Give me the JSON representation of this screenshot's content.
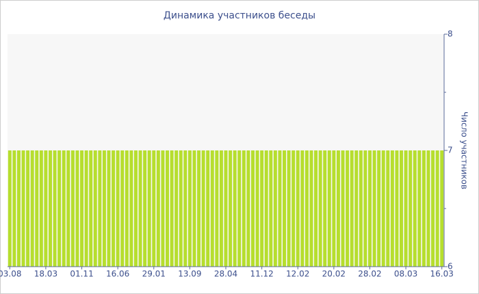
{
  "chart_data": {
    "type": "bar",
    "title": "Динамика участников беседы",
    "y_label": "Число участников",
    "categories": [
      "03.08",
      null,
      null,
      null,
      null,
      null,
      null,
      null,
      "18.03",
      null,
      null,
      null,
      null,
      null,
      null,
      null,
      "01.11",
      null,
      null,
      null,
      null,
      null,
      null,
      null,
      "16.06",
      null,
      null,
      null,
      null,
      null,
      null,
      null,
      "29.01",
      null,
      null,
      null,
      null,
      null,
      null,
      null,
      "13.09",
      null,
      null,
      null,
      null,
      null,
      null,
      null,
      "28.04",
      null,
      null,
      null,
      null,
      null,
      null,
      null,
      "11.12",
      null,
      null,
      null,
      null,
      null,
      null,
      null,
      "12.02",
      null,
      null,
      null,
      null,
      null,
      null,
      null,
      "20.02",
      null,
      null,
      null,
      null,
      null,
      null,
      null,
      "28.02",
      null,
      null,
      null,
      null,
      null,
      null,
      null,
      "08.03",
      null,
      null,
      null,
      null,
      null,
      null,
      null,
      "16.03"
    ],
    "values": [
      7,
      7,
      7,
      7,
      7,
      7,
      7,
      7,
      7,
      7,
      7,
      7,
      7,
      7,
      7,
      7,
      7,
      7,
      7,
      7,
      7,
      7,
      7,
      7,
      7,
      7,
      7,
      7,
      7,
      7,
      7,
      7,
      7,
      7,
      7,
      7,
      7,
      7,
      7,
      7,
      7,
      7,
      7,
      7,
      7,
      7,
      7,
      7,
      7,
      7,
      7,
      7,
      7,
      7,
      7,
      7,
      7,
      7,
      7,
      7,
      7,
      7,
      7,
      7,
      7,
      7,
      7,
      7,
      7,
      7,
      7,
      7,
      7,
      7,
      7,
      7,
      7,
      7,
      7,
      7,
      7,
      7,
      7,
      7,
      7,
      7,
      7,
      7,
      7,
      7,
      7,
      7,
      7,
      7,
      7,
      7,
      7
    ],
    "color": "#b6de2e",
    "ylim": [
      6,
      8
    ],
    "yticks": [
      6,
      7,
      8
    ],
    "yminor_ticks": [
      6.5,
      7.5
    ],
    "y_axis_side": "right"
  }
}
